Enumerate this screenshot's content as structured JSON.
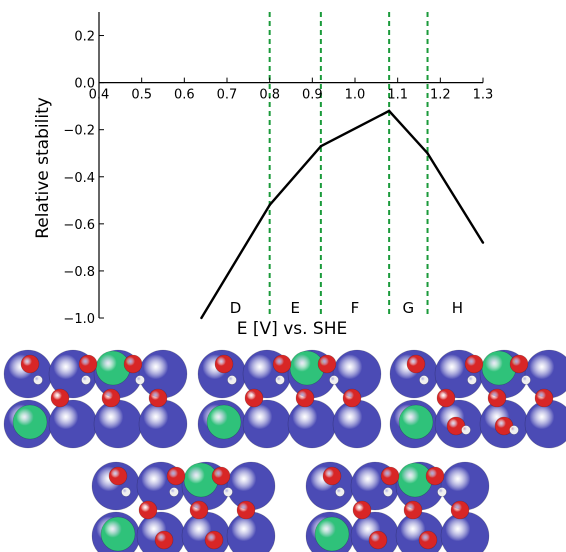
{
  "chart_data": {
    "type": "line",
    "xlabel": "E [V] vs. SHE",
    "ylabel": "Relative stability",
    "xlim": [
      0.4,
      1.3
    ],
    "ylim": [
      -1.0,
      0.3
    ],
    "x_ticks": [
      "0.4",
      "0.5",
      "0.6",
      "0.7",
      "0.8",
      "0.9",
      "1.0",
      "1.1",
      "1.2",
      "1.3"
    ],
    "y_ticks": [
      "0.2",
      "0.0",
      "−0.2",
      "−0.4",
      "−0.6",
      "−0.8",
      "−1.0"
    ],
    "grid": false,
    "series": [
      {
        "x": [
          0.64,
          0.8,
          0.92,
          1.08,
          1.17,
          1.3
        ],
        "y": [
          -1.0,
          -0.52,
          -0.27,
          -0.12,
          -0.3,
          -0.68
        ]
      }
    ],
    "vlines": [
      0.8,
      0.92,
      1.08,
      1.17
    ],
    "regions": [
      {
        "label": "D",
        "x": 0.72
      },
      {
        "label": "E",
        "x": 0.86
      },
      {
        "label": "F",
        "x": 1.0
      },
      {
        "label": "G",
        "x": 1.125
      },
      {
        "label": "H",
        "x": 1.24
      }
    ],
    "colors": {
      "line": "#000000",
      "vline": "#1a9a3a"
    }
  },
  "structures": {
    "colors": {
      "surface_atom": "#4b4bb5",
      "oxygen": "#d82626",
      "hydrogen": "#f0f0f0",
      "dopant": "#2fc27a"
    }
  }
}
